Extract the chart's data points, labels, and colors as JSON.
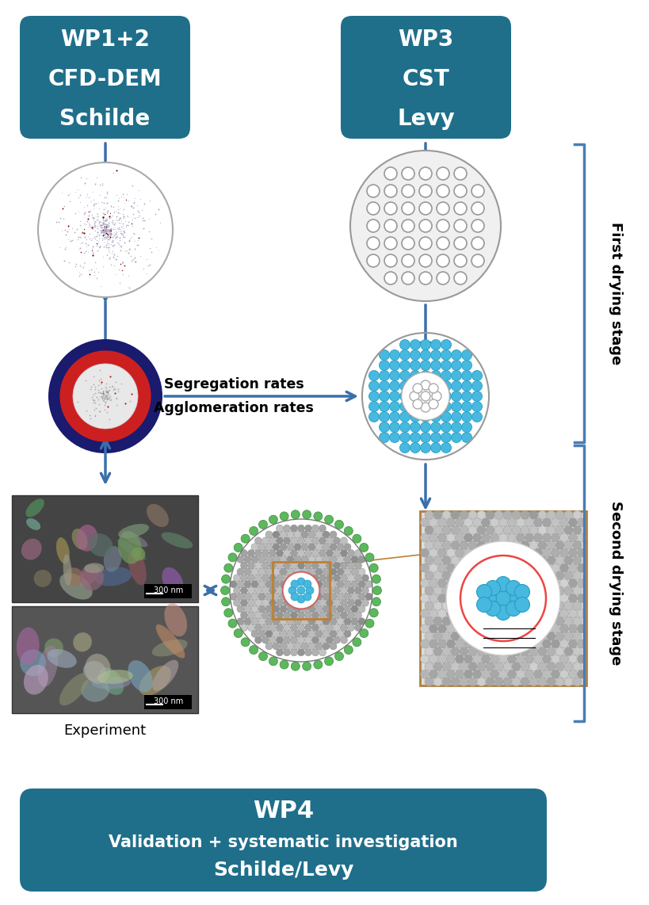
{
  "bg_color": "#ffffff",
  "teal_box": "#1f6f8b",
  "blue_arrow": "#3a6fad",
  "blue_bracket": "#4a7db5",
  "box1_lines": [
    "WP1+2",
    "CFD-DEM",
    "Schilde"
  ],
  "box2_lines": [
    "WP3",
    "CST",
    "Levy"
  ],
  "box3_lines": [
    "WP4",
    "Validation + systematic investigation",
    "Schilde/Levy"
  ],
  "label_first": "First drying stage",
  "label_second": "Second drying stage",
  "label_experiment": "Experiment",
  "seg_text1": "Segregation rates",
  "seg_text2": "Agglomeration rates",
  "fig_width": 8.2,
  "fig_height": 11.42,
  "dpi": 100
}
